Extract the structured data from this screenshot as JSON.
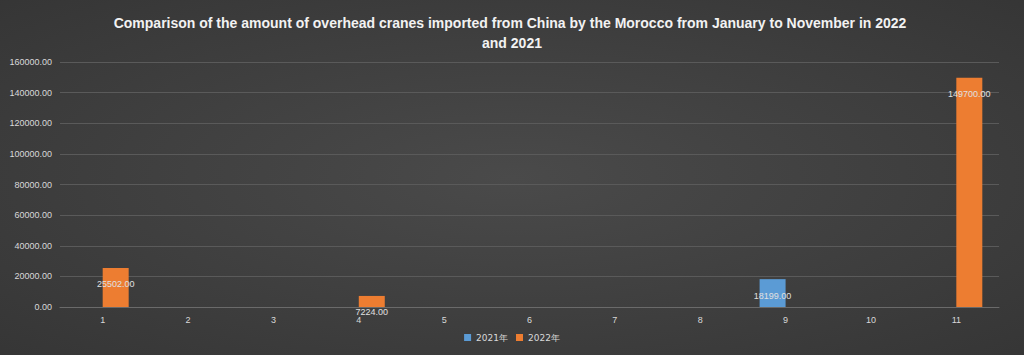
{
  "chart_data": {
    "type": "bar",
    "title": "Comparison of the amount of overhead cranes imported from China by the Morocco from January to November in 2022 and 2021",
    "categories": [
      "1",
      "2",
      "3",
      "4",
      "5",
      "6",
      "7",
      "8",
      "9",
      "10",
      "11"
    ],
    "series": [
      {
        "name": "2021年",
        "color": "#5b9bd5",
        "values": [
          null,
          null,
          null,
          null,
          null,
          null,
          null,
          null,
          18199,
          null,
          null
        ],
        "value_labels": [
          null,
          null,
          null,
          null,
          null,
          null,
          null,
          null,
          "18199.00",
          null,
          null
        ]
      },
      {
        "name": "2022年",
        "color": "#ed7d31",
        "values": [
          25502,
          null,
          null,
          7224,
          null,
          null,
          null,
          null,
          null,
          null,
          149700
        ],
        "value_labels": [
          "25502.00",
          null,
          null,
          "7224.00",
          null,
          null,
          null,
          null,
          null,
          null,
          "149700.00"
        ]
      }
    ],
    "ylim": [
      0,
      160000
    ],
    "yticks": [
      {
        "value": 0,
        "label": "0.00"
      },
      {
        "value": 20000,
        "label": "20000.00"
      },
      {
        "value": 40000,
        "label": "40000.00"
      },
      {
        "value": 60000,
        "label": "60000.00"
      },
      {
        "value": 80000,
        "label": "80000.00"
      },
      {
        "value": 100000,
        "label": "100000.00"
      },
      {
        "value": 120000,
        "label": "120000.00"
      },
      {
        "value": 140000,
        "label": "140000.00"
      },
      {
        "value": 160000,
        "label": "160000.00"
      }
    ],
    "grid": true,
    "legend": "bottom",
    "data_labels": true
  }
}
